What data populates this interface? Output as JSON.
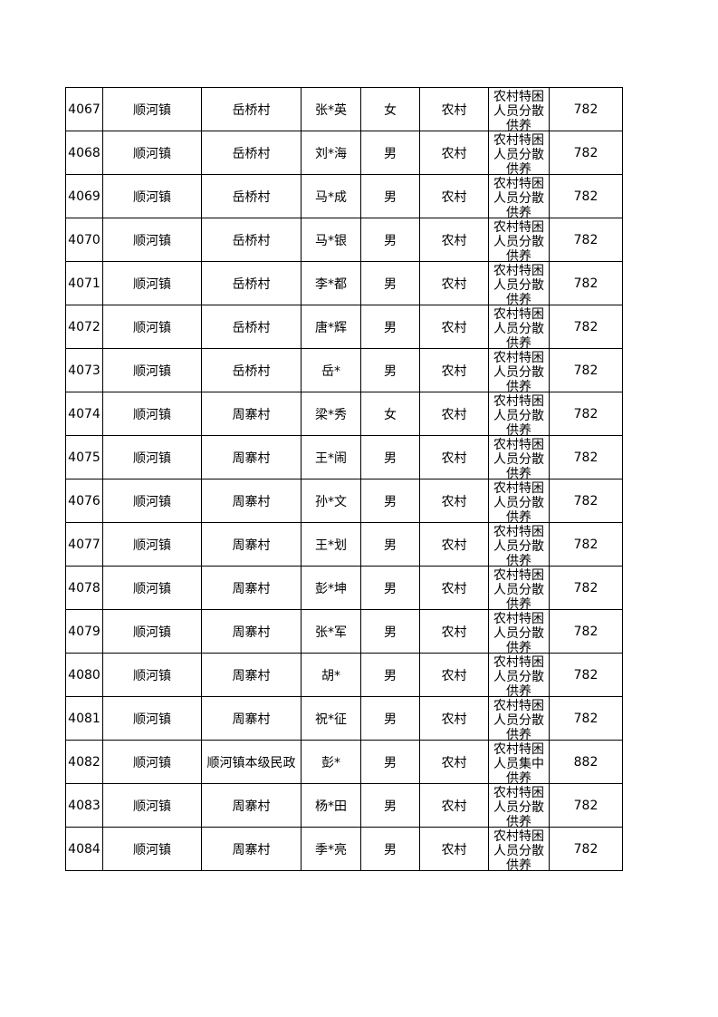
{
  "table": {
    "rows": [
      [
        "4067",
        "顺河镇",
        "岳桥村",
        "张*英",
        "女",
        "农村",
        "农村特困人员分散供养",
        "782"
      ],
      [
        "4068",
        "顺河镇",
        "岳桥村",
        "刘*海",
        "男",
        "农村",
        "农村特困人员分散供养",
        "782"
      ],
      [
        "4069",
        "顺河镇",
        "岳桥村",
        "马*成",
        "男",
        "农村",
        "农村特困人员分散供养",
        "782"
      ],
      [
        "4070",
        "顺河镇",
        "岳桥村",
        "马*银",
        "男",
        "农村",
        "农村特困人员分散供养",
        "782"
      ],
      [
        "4071",
        "顺河镇",
        "岳桥村",
        "李*都",
        "男",
        "农村",
        "农村特困人员分散供养",
        "782"
      ],
      [
        "4072",
        "顺河镇",
        "岳桥村",
        "唐*辉",
        "男",
        "农村",
        "农村特困人员分散供养",
        "782"
      ],
      [
        "4073",
        "顺河镇",
        "岳桥村",
        "岳*",
        "男",
        "农村",
        "农村特困人员分散供养",
        "782"
      ],
      [
        "4074",
        "顺河镇",
        "周寨村",
        "梁*秀",
        "女",
        "农村",
        "农村特困人员分散供养",
        "782"
      ],
      [
        "4075",
        "顺河镇",
        "周寨村",
        "王*闹",
        "男",
        "农村",
        "农村特困人员分散供养",
        "782"
      ],
      [
        "4076",
        "顺河镇",
        "周寨村",
        "孙*文",
        "男",
        "农村",
        "农村特困人员分散供养",
        "782"
      ],
      [
        "4077",
        "顺河镇",
        "周寨村",
        "王*划",
        "男",
        "农村",
        "农村特困人员分散供养",
        "782"
      ],
      [
        "4078",
        "顺河镇",
        "周寨村",
        "彭*坤",
        "男",
        "农村",
        "农村特困人员分散供养",
        "782"
      ],
      [
        "4079",
        "顺河镇",
        "周寨村",
        "张*军",
        "男",
        "农村",
        "农村特困人员分散供养",
        "782"
      ],
      [
        "4080",
        "顺河镇",
        "周寨村",
        "胡*",
        "男",
        "农村",
        "农村特困人员分散供养",
        "782"
      ],
      [
        "4081",
        "顺河镇",
        "周寨村",
        "祝*征",
        "男",
        "农村",
        "农村特困人员分散供养",
        "782"
      ],
      [
        "4082",
        "顺河镇",
        "顺河镇本级民政",
        "彭*",
        "男",
        "农村",
        "农村特困人员集中供养",
        "882"
      ],
      [
        "4083",
        "顺河镇",
        "周寨村",
        "杨*田",
        "男",
        "农村",
        "农村特困人员分散供养",
        "782"
      ],
      [
        "4084",
        "顺河镇",
        "周寨村",
        "季*亮",
        "男",
        "农村",
        "农村特困人员分散供养",
        "782"
      ]
    ]
  }
}
